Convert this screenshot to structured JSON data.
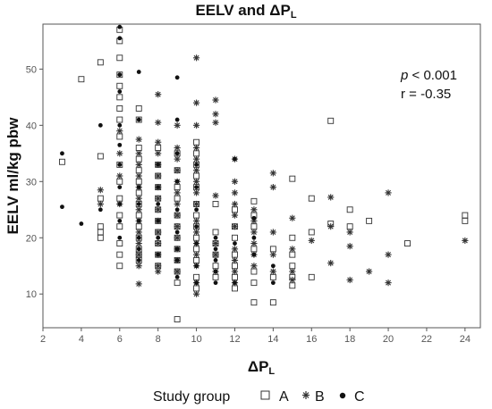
{
  "chart_data": {
    "type": "scatter",
    "title": "EELV and ΔP",
    "title_subscript": "L",
    "xlabel": "ΔP",
    "xlabel_subscript": "L",
    "ylabel": "EELV ml/kg pbw",
    "xlim": [
      2,
      24.8
    ],
    "ylim": [
      4,
      58
    ],
    "xticks": [
      2,
      4,
      6,
      8,
      10,
      12,
      14,
      16,
      18,
      20,
      22,
      24
    ],
    "yticks": [
      10,
      20,
      30,
      40,
      50
    ],
    "grid": false,
    "annotations": [
      {
        "label": "p",
        "text": " < 0.001",
        "italic_label": true
      },
      {
        "label": "",
        "text": "r = -0.35",
        "italic_label": false
      }
    ],
    "legend": {
      "title": "Study group",
      "placement": "bottom",
      "entries": [
        {
          "name": "A",
          "marker": "square"
        },
        {
          "name": "B",
          "marker": "asterisk"
        },
        {
          "name": "C",
          "marker": "dot"
        }
      ]
    },
    "series": [
      {
        "name": "A",
        "marker": "square",
        "points": [
          [
            3,
            33.5
          ],
          [
            4,
            48.2
          ],
          [
            5,
            51.2
          ],
          [
            5,
            34.5
          ],
          [
            5,
            27
          ],
          [
            5,
            22
          ],
          [
            5,
            21
          ],
          [
            5,
            20
          ],
          [
            6,
            57
          ],
          [
            6,
            55
          ],
          [
            6,
            52
          ],
          [
            6,
            49
          ],
          [
            6,
            47
          ],
          [
            6,
            45
          ],
          [
            6,
            43
          ],
          [
            6,
            41
          ],
          [
            6,
            38
          ],
          [
            6,
            33
          ],
          [
            6,
            30
          ],
          [
            6,
            27
          ],
          [
            6,
            24
          ],
          [
            6,
            22
          ],
          [
            6,
            19
          ],
          [
            6,
            17
          ],
          [
            6,
            15
          ],
          [
            7,
            43
          ],
          [
            7,
            41
          ],
          [
            7,
            36
          ],
          [
            7,
            34
          ],
          [
            7,
            32
          ],
          [
            7,
            30
          ],
          [
            7,
            28
          ],
          [
            7,
            26
          ],
          [
            7,
            24
          ],
          [
            7,
            22
          ],
          [
            7,
            20
          ],
          [
            7,
            18
          ],
          [
            7,
            17
          ],
          [
            7,
            16
          ],
          [
            8,
            36
          ],
          [
            8,
            33
          ],
          [
            8,
            31
          ],
          [
            8,
            29
          ],
          [
            8,
            27
          ],
          [
            8,
            25
          ],
          [
            8,
            23
          ],
          [
            8,
            21
          ],
          [
            8,
            19
          ],
          [
            8,
            17
          ],
          [
            8,
            15
          ],
          [
            9,
            5.5
          ],
          [
            9,
            35
          ],
          [
            9,
            32
          ],
          [
            9,
            29
          ],
          [
            9,
            27
          ],
          [
            9,
            24
          ],
          [
            9,
            22
          ],
          [
            9,
            20
          ],
          [
            9,
            18
          ],
          [
            9,
            16
          ],
          [
            9,
            14
          ],
          [
            9,
            12
          ],
          [
            10,
            37
          ],
          [
            10,
            35
          ],
          [
            10,
            33
          ],
          [
            10,
            31
          ],
          [
            10,
            29
          ],
          [
            10,
            26
          ],
          [
            10,
            24
          ],
          [
            10,
            22
          ],
          [
            10,
            20
          ],
          [
            10,
            18
          ],
          [
            10,
            16
          ],
          [
            10,
            13
          ],
          [
            10,
            11
          ],
          [
            11,
            26
          ],
          [
            11,
            21
          ],
          [
            11,
            19
          ],
          [
            11,
            17
          ],
          [
            11,
            15
          ],
          [
            11,
            13
          ],
          [
            12,
            25
          ],
          [
            12,
            22
          ],
          [
            12,
            20
          ],
          [
            12,
            17
          ],
          [
            12,
            15
          ],
          [
            12,
            13
          ],
          [
            12,
            11
          ],
          [
            13,
            26.5
          ],
          [
            13,
            24
          ],
          [
            13,
            22
          ],
          [
            13,
            18
          ],
          [
            13,
            14
          ],
          [
            13,
            12
          ],
          [
            13,
            8.5
          ],
          [
            14,
            18
          ],
          [
            14,
            13
          ],
          [
            14,
            8.5
          ],
          [
            15,
            30.5
          ],
          [
            15,
            20
          ],
          [
            15,
            17
          ],
          [
            15,
            15
          ],
          [
            15,
            13
          ],
          [
            15,
            11.5
          ],
          [
            16,
            27
          ],
          [
            16,
            21
          ],
          [
            16,
            13
          ],
          [
            17,
            40.8
          ],
          [
            17,
            22.5
          ],
          [
            18,
            25
          ],
          [
            18,
            22
          ],
          [
            19,
            23
          ],
          [
            21,
            19
          ],
          [
            24,
            24
          ],
          [
            24,
            23
          ]
        ]
      },
      {
        "name": "B",
        "marker": "asterisk",
        "points": [
          [
            5,
            28.5
          ],
          [
            5,
            26
          ],
          [
            6,
            39
          ],
          [
            6,
            35
          ],
          [
            6,
            31
          ],
          [
            6,
            26
          ],
          [
            7,
            37.5
          ],
          [
            7,
            35
          ],
          [
            7,
            33
          ],
          [
            7,
            31
          ],
          [
            7,
            29
          ],
          [
            7,
            27
          ],
          [
            7,
            25
          ],
          [
            7,
            23
          ],
          [
            7,
            21
          ],
          [
            7,
            19
          ],
          [
            7,
            17
          ],
          [
            7,
            15
          ],
          [
            7,
            11.8
          ],
          [
            8,
            45.5
          ],
          [
            8,
            40.5
          ],
          [
            8,
            37
          ],
          [
            8,
            35
          ],
          [
            8,
            33
          ],
          [
            8,
            31
          ],
          [
            8,
            29
          ],
          [
            8,
            27
          ],
          [
            8,
            25
          ],
          [
            8,
            23
          ],
          [
            8,
            21
          ],
          [
            8,
            19
          ],
          [
            8,
            17
          ],
          [
            8,
            15
          ],
          [
            8,
            14
          ],
          [
            9,
            40
          ],
          [
            9,
            36
          ],
          [
            9,
            34
          ],
          [
            9,
            32
          ],
          [
            9,
            30
          ],
          [
            9,
            28
          ],
          [
            9,
            26
          ],
          [
            9,
            24
          ],
          [
            9,
            22
          ],
          [
            9,
            20
          ],
          [
            9,
            18
          ],
          [
            9,
            16
          ],
          [
            9,
            14
          ],
          [
            10,
            52
          ],
          [
            10,
            44
          ],
          [
            10,
            40
          ],
          [
            10,
            36
          ],
          [
            10,
            34
          ],
          [
            10,
            32
          ],
          [
            10,
            30
          ],
          [
            10,
            28
          ],
          [
            10,
            26
          ],
          [
            10,
            23
          ],
          [
            10,
            21
          ],
          [
            10,
            19
          ],
          [
            10,
            17
          ],
          [
            10,
            15
          ],
          [
            10,
            12
          ],
          [
            10,
            10
          ],
          [
            11,
            44.5
          ],
          [
            11,
            42
          ],
          [
            11,
            40.5
          ],
          [
            11,
            27.5
          ],
          [
            11,
            19
          ],
          [
            11,
            17
          ],
          [
            11,
            14
          ],
          [
            12,
            34
          ],
          [
            12,
            30
          ],
          [
            12,
            28
          ],
          [
            12,
            26
          ],
          [
            12,
            24
          ],
          [
            12,
            22
          ],
          [
            12,
            18
          ],
          [
            12,
            16
          ],
          [
            12,
            14
          ],
          [
            12,
            12
          ],
          [
            13,
            25
          ],
          [
            13,
            23
          ],
          [
            13,
            21
          ],
          [
            13,
            19
          ],
          [
            13,
            17
          ],
          [
            13,
            15
          ],
          [
            14,
            31.5
          ],
          [
            14,
            29
          ],
          [
            14,
            21
          ],
          [
            14,
            17
          ],
          [
            14,
            14
          ],
          [
            15,
            23.5
          ],
          [
            15,
            18
          ],
          [
            15,
            14
          ],
          [
            15,
            12.5
          ],
          [
            16,
            19.5
          ],
          [
            17,
            27.2
          ],
          [
            17,
            22
          ],
          [
            17,
            15.5
          ],
          [
            18,
            21
          ],
          [
            18,
            18.5
          ],
          [
            18,
            12.5
          ],
          [
            19,
            14
          ],
          [
            20,
            28
          ],
          [
            20,
            17
          ],
          [
            20,
            12
          ],
          [
            24,
            19.5
          ]
        ]
      },
      {
        "name": "C",
        "marker": "dot",
        "points": [
          [
            3,
            35
          ],
          [
            3,
            25.5
          ],
          [
            4,
            22.5
          ],
          [
            5,
            40
          ],
          [
            5,
            25
          ],
          [
            6,
            57.5
          ],
          [
            6,
            55.5
          ],
          [
            6,
            49
          ],
          [
            6,
            46
          ],
          [
            6,
            40
          ],
          [
            6,
            36.5
          ],
          [
            6,
            33
          ],
          [
            6,
            29
          ],
          [
            6,
            26
          ],
          [
            6,
            23
          ],
          [
            6,
            20
          ],
          [
            7,
            49.5
          ],
          [
            7,
            41
          ],
          [
            7,
            29
          ],
          [
            7,
            26
          ],
          [
            7,
            23
          ],
          [
            7,
            20
          ],
          [
            7,
            18
          ],
          [
            7,
            16
          ],
          [
            8,
            33
          ],
          [
            8,
            29
          ],
          [
            8,
            26
          ],
          [
            8,
            23
          ],
          [
            8,
            20
          ],
          [
            8,
            17
          ],
          [
            9,
            48.5
          ],
          [
            9,
            41
          ],
          [
            9,
            35
          ],
          [
            9,
            30
          ],
          [
            9,
            25
          ],
          [
            9,
            21
          ],
          [
            9,
            18
          ],
          [
            9,
            16
          ],
          [
            9,
            13
          ],
          [
            10,
            33
          ],
          [
            10,
            29
          ],
          [
            10,
            25
          ],
          [
            10,
            22
          ],
          [
            10,
            19
          ],
          [
            10,
            15
          ],
          [
            10,
            12
          ],
          [
            11,
            20
          ],
          [
            11,
            18
          ],
          [
            11,
            16
          ],
          [
            11,
            14
          ],
          [
            11,
            12
          ],
          [
            12,
            34
          ],
          [
            12,
            19
          ],
          [
            12,
            12
          ],
          [
            13,
            23.5
          ],
          [
            13,
            20
          ],
          [
            13,
            17
          ],
          [
            14,
            15
          ],
          [
            14,
            12
          ]
        ]
      }
    ]
  }
}
